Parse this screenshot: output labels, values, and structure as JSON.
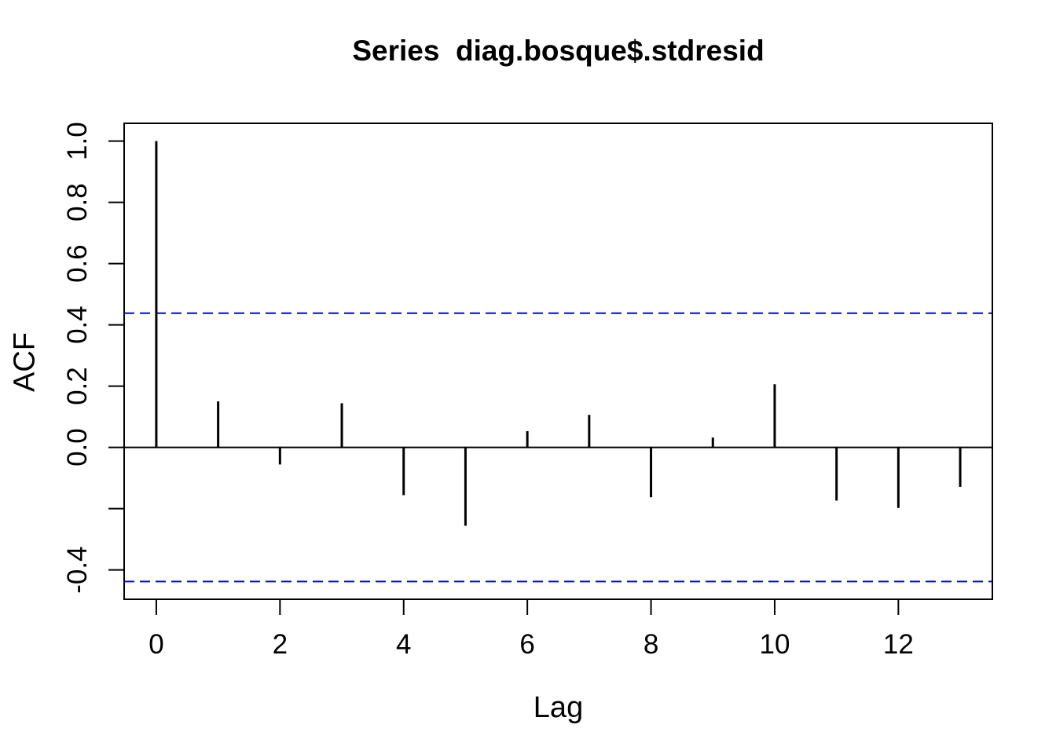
{
  "chart_data": {
    "type": "bar",
    "subtype": "acf-stem-plot",
    "title": "Series  diag.bosque$.stdresid",
    "xlabel": "Lag",
    "ylabel": "ACF",
    "x": [
      0,
      1,
      2,
      3,
      4,
      5,
      6,
      7,
      8,
      9,
      10,
      11,
      12,
      13
    ],
    "values": [
      1.0,
      0.15,
      -0.056,
      0.144,
      -0.156,
      -0.256,
      0.053,
      0.106,
      -0.163,
      0.032,
      0.206,
      -0.174,
      -0.198,
      -0.129
    ],
    "confidence_bounds": {
      "upper": 0.438,
      "lower": -0.438,
      "line_style": "dashed"
    },
    "xlim": [
      -0.52,
      13.52
    ],
    "ylim": [
      -0.496,
      1.058
    ],
    "x_ticks": [
      {
        "v": 0,
        "label": "0"
      },
      {
        "v": 2,
        "label": "2"
      },
      {
        "v": 4,
        "label": "4"
      },
      {
        "v": 6,
        "label": "6"
      },
      {
        "v": 8,
        "label": "8"
      },
      {
        "v": 10,
        "label": "10"
      },
      {
        "v": 12,
        "label": "12"
      }
    ],
    "y_ticks": [
      {
        "v": 1.0,
        "label": "1.0"
      },
      {
        "v": 0.8,
        "label": "0.8"
      },
      {
        "v": 0.6,
        "label": "0.6"
      },
      {
        "v": 0.4,
        "label": "0.4"
      },
      {
        "v": 0.2,
        "label": "0.2"
      },
      {
        "v": 0.0,
        "label": "0.0"
      },
      {
        "v": -0.2,
        "label": ""
      },
      {
        "v": -0.4,
        "label": "-0.4"
      }
    ],
    "grid": false,
    "legend": null,
    "colors": {
      "bar": "#000000",
      "axis": "#000000",
      "zero_line": "#000000",
      "confidence_line": "#0000ff",
      "background": "#ffffff",
      "text": "#000000"
    }
  }
}
